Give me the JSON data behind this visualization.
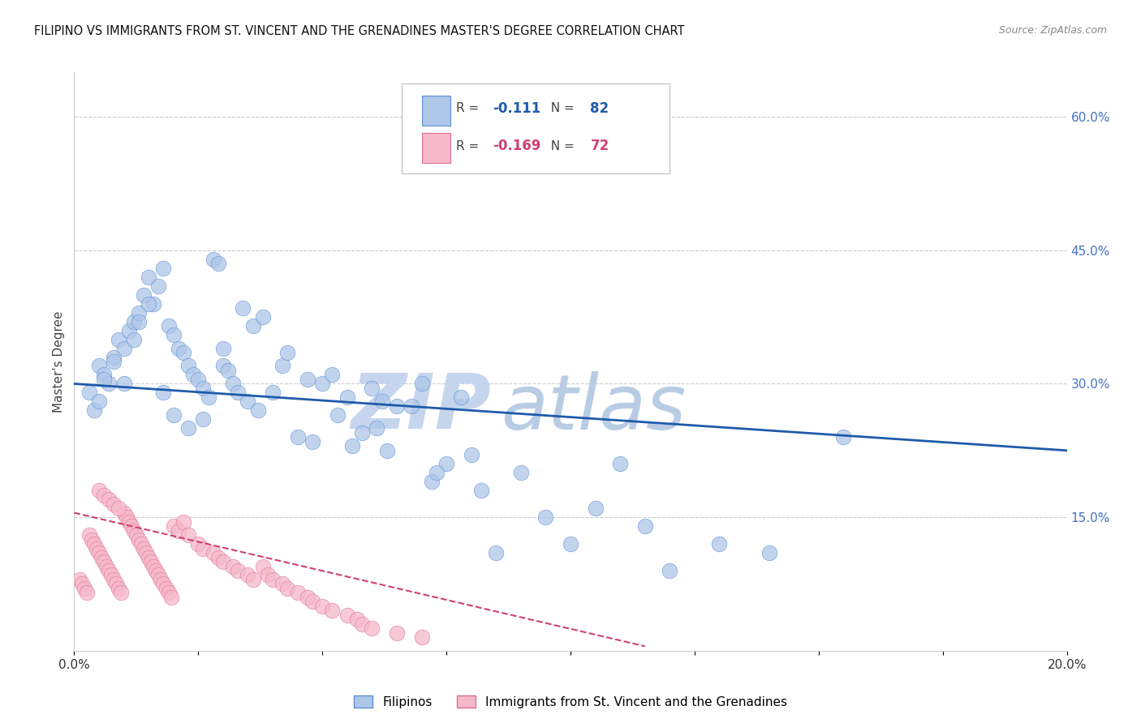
{
  "title": "FILIPINO VS IMMIGRANTS FROM ST. VINCENT AND THE GRENADINES MASTER'S DEGREE CORRELATION CHART",
  "source": "Source: ZipAtlas.com",
  "ylabel": "Master's Degree",
  "xlim": [
    0.0,
    20.0
  ],
  "ylim": [
    0.0,
    65.0
  ],
  "yticks_right": [
    15.0,
    30.0,
    45.0,
    60.0
  ],
  "ytick_labels_right": [
    "15.0%",
    "30.0%",
    "45.0%",
    "60.0%"
  ],
  "xtick_positions": [
    0.0,
    2.5,
    5.0,
    7.5,
    10.0,
    12.5,
    15.0,
    17.5,
    20.0
  ],
  "xtick_labels": [
    "0.0%",
    "",
    "",
    "",
    "",
    "",
    "",
    "",
    "20.0%"
  ],
  "blue_color": "#aec6e8",
  "blue_edge_color": "#5b8fd4",
  "blue_line_color": "#1f5baa",
  "pink_color": "#f5b8c8",
  "pink_edge_color": "#e07090",
  "pink_line_color": "#d04070",
  "legend_blue_R": "-0.111",
  "legend_blue_N": "82",
  "legend_pink_R": "-0.169",
  "legend_pink_N": "72",
  "legend_label_blue": "Filipinos",
  "legend_label_pink": "Immigrants from St. Vincent and the Grenadines",
  "watermark": "ZIPatlas",
  "watermark_color": "#ccd9ee",
  "blue_line_x0": 0.0,
  "blue_line_y0": 30.0,
  "blue_line_x1": 20.0,
  "blue_line_y1": 22.5,
  "pink_line_x0": 0.0,
  "pink_line_y0": 15.5,
  "pink_line_x1": 11.5,
  "pink_line_y1": 0.5,
  "blue_dots_x": [
    0.3,
    0.4,
    0.5,
    0.6,
    0.7,
    0.8,
    0.9,
    1.0,
    1.1,
    1.2,
    1.3,
    1.4,
    1.5,
    1.6,
    1.7,
    1.8,
    1.9,
    2.0,
    2.1,
    2.2,
    2.3,
    2.4,
    2.5,
    2.6,
    2.7,
    2.8,
    2.9,
    3.0,
    3.1,
    3.2,
    3.3,
    3.5,
    3.7,
    4.0,
    4.2,
    4.5,
    5.0,
    5.2,
    5.5,
    6.0,
    6.2,
    6.5,
    7.0,
    7.2,
    7.5,
    8.0,
    8.5,
    9.0,
    10.0,
    11.0,
    12.0,
    14.0,
    0.5,
    0.6,
    0.8,
    1.0,
    1.2,
    1.3,
    1.5,
    1.8,
    2.0,
    2.3,
    2.6,
    3.0,
    3.4,
    3.6,
    3.8,
    4.3,
    4.7,
    4.8,
    5.3,
    5.6,
    5.8,
    6.1,
    6.3,
    6.8,
    7.3,
    7.8,
    8.2,
    9.5,
    10.5,
    11.5,
    13.0,
    15.5
  ],
  "blue_dots_y": [
    29.0,
    27.0,
    32.0,
    31.0,
    30.0,
    33.0,
    35.0,
    34.0,
    36.0,
    37.0,
    38.0,
    40.0,
    42.0,
    39.0,
    41.0,
    43.0,
    36.5,
    35.5,
    34.0,
    33.5,
    32.0,
    31.0,
    30.5,
    29.5,
    28.5,
    44.0,
    43.5,
    32.0,
    31.5,
    30.0,
    29.0,
    28.0,
    27.0,
    29.0,
    32.0,
    24.0,
    30.0,
    31.0,
    28.5,
    29.5,
    28.0,
    27.5,
    30.0,
    19.0,
    21.0,
    22.0,
    11.0,
    20.0,
    12.0,
    21.0,
    9.0,
    11.0,
    28.0,
    30.5,
    32.5,
    30.0,
    35.0,
    37.0,
    39.0,
    29.0,
    26.5,
    25.0,
    26.0,
    34.0,
    38.5,
    36.5,
    37.5,
    33.5,
    30.5,
    23.5,
    26.5,
    23.0,
    24.5,
    25.0,
    22.5,
    27.5,
    20.0,
    28.5,
    18.0,
    15.0,
    16.0,
    14.0,
    12.0,
    24.0
  ],
  "pink_dots_x": [
    0.1,
    0.15,
    0.2,
    0.25,
    0.3,
    0.35,
    0.4,
    0.45,
    0.5,
    0.55,
    0.6,
    0.65,
    0.7,
    0.75,
    0.8,
    0.85,
    0.9,
    0.95,
    1.0,
    1.05,
    1.1,
    1.15,
    1.2,
    1.25,
    1.3,
    1.35,
    1.4,
    1.45,
    1.5,
    1.55,
    1.6,
    1.65,
    1.7,
    1.75,
    1.8,
    1.85,
    1.9,
    1.95,
    2.0,
    2.1,
    2.2,
    2.3,
    2.5,
    2.6,
    2.8,
    2.9,
    3.0,
    3.2,
    3.3,
    3.5,
    3.6,
    3.8,
    3.9,
    4.0,
    4.2,
    4.3,
    4.5,
    4.7,
    4.8,
    5.0,
    5.2,
    5.5,
    5.7,
    5.8,
    6.0,
    6.5,
    7.0,
    0.5,
    0.6,
    0.7,
    0.8,
    0.9
  ],
  "pink_dots_y": [
    8.0,
    7.5,
    7.0,
    6.5,
    13.0,
    12.5,
    12.0,
    11.5,
    11.0,
    10.5,
    10.0,
    9.5,
    9.0,
    8.5,
    8.0,
    7.5,
    7.0,
    6.5,
    15.5,
    15.0,
    14.5,
    14.0,
    13.5,
    13.0,
    12.5,
    12.0,
    11.5,
    11.0,
    10.5,
    10.0,
    9.5,
    9.0,
    8.5,
    8.0,
    7.5,
    7.0,
    6.5,
    6.0,
    14.0,
    13.5,
    14.5,
    13.0,
    12.0,
    11.5,
    11.0,
    10.5,
    10.0,
    9.5,
    9.0,
    8.5,
    8.0,
    9.5,
    8.5,
    8.0,
    7.5,
    7.0,
    6.5,
    6.0,
    5.5,
    5.0,
    4.5,
    4.0,
    3.5,
    3.0,
    2.5,
    2.0,
    1.5,
    18.0,
    17.5,
    17.0,
    16.5,
    16.0
  ]
}
